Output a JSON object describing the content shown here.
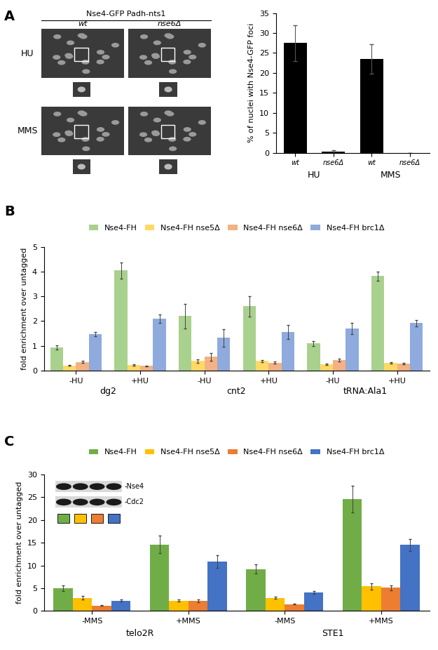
{
  "panel_labels": [
    "A",
    "B",
    "C"
  ],
  "microscopy": {
    "header": "Nse4-GFP Padh-nts1",
    "columns": [
      "wt",
      "nse6Δ"
    ],
    "rows": [
      "HU",
      "MMS"
    ]
  },
  "chart_data": [
    {
      "type": "bar",
      "y_label": "% of nuclei with Nse4-GFP foci",
      "categories": [
        "wt",
        "nse6Δ",
        "wt",
        "nse6Δ"
      ],
      "group_labels": [
        "HU",
        "MMS"
      ],
      "color": "#000000",
      "values": [
        27.5,
        0.3,
        23.5,
        0.0
      ],
      "errors": [
        4.5,
        0.3,
        3.7,
        0.0
      ],
      "ylim": [
        0,
        35
      ],
      "yticks": [
        0,
        5,
        10,
        15,
        20,
        25,
        30,
        35
      ]
    },
    {
      "type": "bar",
      "y_label": "fold enrichment over untagged",
      "categories": [
        "-HU",
        "+HU",
        "-HU",
        "+HU",
        "-HU",
        "+HU"
      ],
      "group_labels": [
        "dg2",
        "cnt2",
        "tRNA:Ala1"
      ],
      "legend": "upper center",
      "series": [
        {
          "name": "Nse4-FH",
          "color": "#a9d18e",
          "values": [
            0.93,
            4.05,
            2.2,
            2.6,
            1.1,
            3.82
          ],
          "errors": [
            0.08,
            0.33,
            0.5,
            0.42,
            0.1,
            0.18
          ]
        },
        {
          "name": "Nse4-FH nse5Δ",
          "color": "#ffd966",
          "values": [
            0.2,
            0.22,
            0.38,
            0.38,
            0.25,
            0.3
          ],
          "errors": [
            0.02,
            0.02,
            0.07,
            0.05,
            0.03,
            0.03
          ]
        },
        {
          "name": "Nse4-FH nse6Δ",
          "color": "#f4b183",
          "values": [
            0.35,
            0.18,
            0.55,
            0.32,
            0.42,
            0.27
          ],
          "errors": [
            0.03,
            0.02,
            0.15,
            0.05,
            0.05,
            0.03
          ]
        },
        {
          "name": "Nse4-FH brc1Δ",
          "color": "#8faadc",
          "values": [
            1.48,
            2.1,
            1.32,
            1.55,
            1.7,
            1.92
          ],
          "errors": [
            0.08,
            0.18,
            0.35,
            0.28,
            0.22,
            0.13
          ]
        }
      ],
      "ylim": [
        0,
        5
      ],
      "yticks": [
        0,
        1,
        2,
        3,
        4,
        5
      ]
    },
    {
      "type": "bar",
      "y_label": "fold enrichment over untagged",
      "categories": [
        "-MMS",
        "+MMS",
        "-MMS",
        "+MMS"
      ],
      "group_labels": [
        "telo2R",
        "STE1"
      ],
      "legend": "upper center",
      "blot": {
        "bands": [
          "-Nse4",
          "-Cdc2"
        ]
      },
      "series": [
        {
          "name": "Nse4-FH",
          "color": "#70ad47",
          "values": [
            5.0,
            14.6,
            9.2,
            24.6
          ],
          "errors": [
            0.6,
            1.9,
            1.0,
            3.0
          ]
        },
        {
          "name": "Nse4-FH nse5Δ",
          "color": "#ffc000",
          "values": [
            2.9,
            2.3,
            2.9,
            5.4
          ],
          "errors": [
            0.4,
            0.3,
            0.2,
            0.7
          ]
        },
        {
          "name": "Nse4-FH nse6Δ",
          "color": "#ed7d31",
          "values": [
            1.2,
            2.2,
            1.5,
            5.1
          ],
          "errors": [
            0.1,
            0.3,
            0.1,
            0.5
          ]
        },
        {
          "name": "Nse4-FH brc1Δ",
          "color": "#4472c4",
          "values": [
            2.3,
            10.9,
            4.1,
            14.5
          ],
          "errors": [
            0.2,
            1.4,
            0.3,
            1.3
          ]
        }
      ],
      "ylim": [
        0,
        30
      ],
      "yticks": [
        0,
        5,
        10,
        15,
        20,
        25,
        30
      ]
    }
  ]
}
